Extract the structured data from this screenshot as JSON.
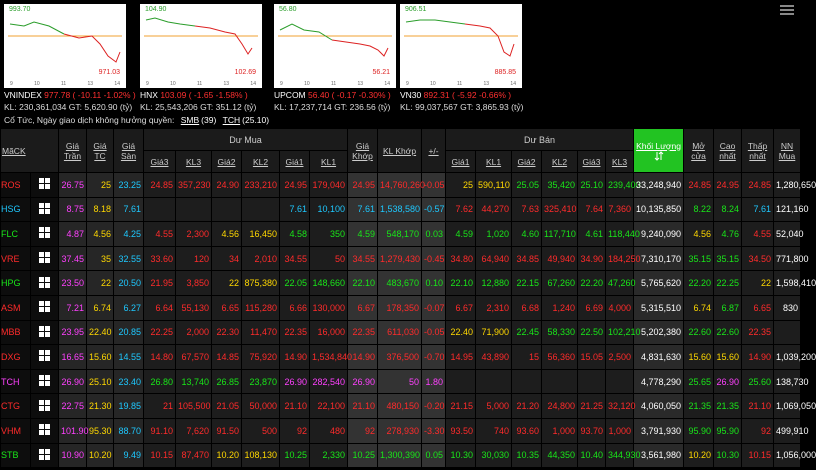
{
  "indices": [
    {
      "name": "VNINDEX",
      "value": "977.78",
      "change": "( -10.11 -1.02% )",
      "kl": "230,361,034",
      "gt": "5,620.90",
      "chart_high": "993.70",
      "chart_low": "971.03"
    },
    {
      "name": "HNX",
      "value": "103.09",
      "change": "( -1.65 -1.58% )",
      "kl": "25,543,206",
      "gt": "351.12",
      "chart_high": "104.90",
      "chart_low": "102.69"
    },
    {
      "name": "UPCOM",
      "value": "56.40",
      "change": "( -0.17 -0.30% )",
      "kl": "17,237,714",
      "gt": "236.56",
      "chart_high": "56.80",
      "chart_low": "56.21"
    },
    {
      "name": "VN30",
      "value": "892.31",
      "change": "( -5.92 -0.66% )",
      "kl": "99,037,567",
      "gt": "3,865.93",
      "chart_high": "906.51",
      "chart_low": "885.85"
    }
  ],
  "index_labels": {
    "kl": "KL:",
    "gt": "GT:",
    "unit": "(tỷ)"
  },
  "chart_hours": [
    "9",
    "10",
    "11",
    "13",
    "14"
  ],
  "notice": {
    "text": "Cổ Tức, Ngày giao dịch không hưởng quyền:",
    "items": [
      {
        "code": "SMB",
        "value": "(39)"
      },
      {
        "code": "TCH",
        "value": "(25.10)"
      }
    ]
  },
  "table": {
    "group_buy": "Dư Mua",
    "group_sell": "Dư Bán",
    "columns": {
      "symbol": "MãCK",
      "ceiling": "Giá Trần",
      "ref": "Giá TC",
      "floor": "Giá Sàn",
      "match_price": "Giá Khớp",
      "match_vol": "KL Khớp",
      "change": "+/-",
      "total": "Khối Lượng",
      "open": "Mở cửa",
      "high": "Cao nhất",
      "low": "Thấp nhất",
      "foreign": "NN Mua"
    },
    "buy_cols": [
      "Giá3",
      "KL3",
      "Giá2",
      "KL2",
      "Giá1",
      "KL1"
    ],
    "sell_cols": [
      "Giá1",
      "KL1",
      "Giá2",
      "KL2",
      "Giá3",
      "KL3"
    ],
    "rows": [
      [
        "ROS",
        "26.75",
        "25",
        "23.25",
        "24.85",
        "357,230",
        "24.90",
        "233,210",
        "24.95",
        "179,040",
        "24.95",
        "14,760,260",
        "-0.05",
        "25",
        "590,110",
        "25.05",
        "35,420",
        "25.10",
        "239,400",
        "33,248,940",
        "24.85",
        "24.95",
        "24.85",
        "1,280,650"
      ],
      [
        "HSG",
        "8.75",
        "8.18",
        "7.61",
        null,
        null,
        null,
        null,
        "7.61",
        "10,100",
        "7.61",
        "1,538,580",
        "-0.57",
        "7.62",
        "44,270",
        "7.63",
        "325,410",
        "7.64",
        "7,360",
        "10,135,850",
        "8.22",
        "8.24",
        "7.61",
        "121,160"
      ],
      [
        "FLC",
        "4.87",
        "4.56",
        "4.25",
        "4.55",
        "2,300",
        "4.56",
        "16,450",
        "4.58",
        "350",
        "4.59",
        "548,170",
        "0.03",
        "4.59",
        "1,020",
        "4.60",
        "117,710",
        "4.61",
        "118,440",
        "9,240,090",
        "4.56",
        "4.76",
        "4.55",
        "52,040"
      ],
      [
        "VRE",
        "37.45",
        "35",
        "32.55",
        "33.60",
        "120",
        "34",
        "2,010",
        "34.55",
        "50",
        "34.55",
        "1,279,430",
        "-0.45",
        "34.80",
        "64,940",
        "34.85",
        "49,940",
        "34.90",
        "184,250",
        "7,310,170",
        "35.15",
        "35.15",
        "34.50",
        "771,800"
      ],
      [
        "HPG",
        "23.50",
        "22",
        "20.50",
        "21.95",
        "3,850",
        "22",
        "875,380",
        "22.05",
        "148,660",
        "22.10",
        "483,670",
        "0.10",
        "22.10",
        "12,880",
        "22.15",
        "67,260",
        "22.20",
        "47,260",
        "5,765,620",
        "22.20",
        "22.25",
        "22",
        "1,598,410"
      ],
      [
        "ASM",
        "7.21",
        "6.74",
        "6.27",
        "6.64",
        "55,130",
        "6.65",
        "115,280",
        "6.66",
        "130,000",
        "6.67",
        "178,350",
        "-0.07",
        "6.67",
        "2,310",
        "6.68",
        "1,240",
        "6.69",
        "4,000",
        "5,315,510",
        "6.74",
        "6.87",
        "6.65",
        "830"
      ],
      [
        "MBB",
        "23.95",
        "22.40",
        "20.85",
        "22.25",
        "2,000",
        "22.30",
        "11,470",
        "22.35",
        "16,000",
        "22.35",
        "611,030",
        "-0.05",
        "22.40",
        "71,900",
        "22.45",
        "58,330",
        "22.50",
        "102,210",
        "5,202,380",
        "22.60",
        "22.60",
        "22.35",
        null
      ],
      [
        "DXG",
        "16.65",
        "15.60",
        "14.55",
        "14.80",
        "67,570",
        "14.85",
        "75,920",
        "14.90",
        "1,534,840",
        "14.90",
        "376,500",
        "-0.70",
        "14.95",
        "43,890",
        "15",
        "56,360",
        "15.05",
        "2,500",
        "4,831,630",
        "15.60",
        "15.60",
        "14.90",
        "1,039,200"
      ],
      [
        "TCH",
        "26.90",
        "25.10",
        "23.40",
        "26.80",
        "13,740",
        "26.85",
        "23,870",
        "26.90",
        "282,540",
        "26.90",
        "50",
        "1.80",
        null,
        null,
        null,
        null,
        null,
        null,
        "4,778,290",
        "25.65",
        "26.90",
        "25.60",
        "138,730"
      ],
      [
        "CTG",
        "22.75",
        "21.30",
        "19.85",
        "21",
        "105,500",
        "21.05",
        "50,000",
        "21.10",
        "22,100",
        "21.10",
        "480,150",
        "-0.20",
        "21.15",
        "5,000",
        "21.20",
        "24,800",
        "21.25",
        "32,120",
        "4,060,050",
        "21.35",
        "21.35",
        "21.10",
        "1,069,050"
      ],
      [
        "VHM",
        "101.90",
        "95.30",
        "88.70",
        "91.10",
        "7,620",
        "91.50",
        "500",
        "92",
        "480",
        "92",
        "278,930",
        "-3.30",
        "93.50",
        "740",
        "93.60",
        "1,000",
        "93.70",
        "1,000",
        "3,791,930",
        "95.90",
        "95.90",
        "92",
        "499,910"
      ],
      [
        "STB",
        "10.90",
        "10.20",
        "9.49",
        "10.15",
        "87,470",
        "10.20",
        "108,130",
        "10.25",
        "2,330",
        "10.25",
        "1,300,390",
        "0.05",
        "10.30",
        "30,030",
        "10.35",
        "44,350",
        "10.40",
        "344,930",
        "3,561,980",
        "10.20",
        "10.30",
        "10.15",
        "1,056,000"
      ]
    ]
  }
}
